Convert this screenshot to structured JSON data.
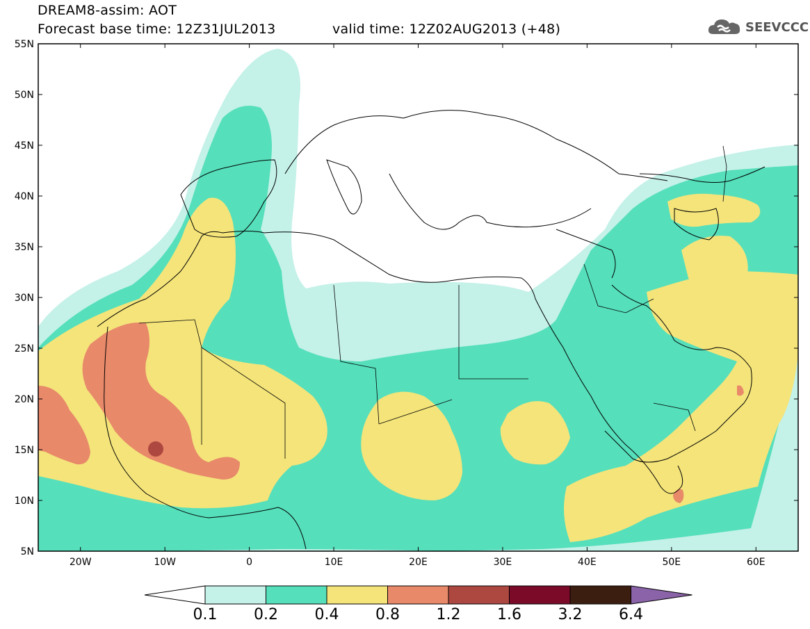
{
  "header": {
    "model_line": "DREAM8-assim: AOT",
    "base_time": "Forecast base time: 12Z31JUL2013",
    "valid_time": "valid time: 12Z02AUG2013 (+48)"
  },
  "logo": {
    "text": "SEEVCCC",
    "icon": "cloud-icon"
  },
  "map": {
    "lat_labels": [
      "55N",
      "50N",
      "45N",
      "40N",
      "35N",
      "30N",
      "25N",
      "20N",
      "15N",
      "10N",
      "5N"
    ],
    "lon_labels": [
      "20W",
      "10W",
      "0",
      "10E",
      "20E",
      "30E",
      "40E",
      "50E",
      "60E"
    ],
    "lon_range": [
      -25,
      65
    ],
    "lat_range": [
      5,
      55
    ]
  },
  "colorbar": {
    "labels": [
      "0.1",
      "0.2",
      "0.4",
      "0.8",
      "1.2",
      "1.6",
      "3.2",
      "6.4"
    ],
    "colors": [
      "#ffffff",
      "#c4f1e8",
      "#55dfbb",
      "#f4e47a",
      "#e8896a",
      "#ad4840",
      "#7b0a28",
      "#3c1e10",
      "#8a63a8"
    ]
  },
  "levels": {
    "c1": "#c4f1e8",
    "c2": "#55dfbb",
    "c3": "#f4e47a",
    "c4": "#e8896a",
    "c5": "#ad4840"
  }
}
